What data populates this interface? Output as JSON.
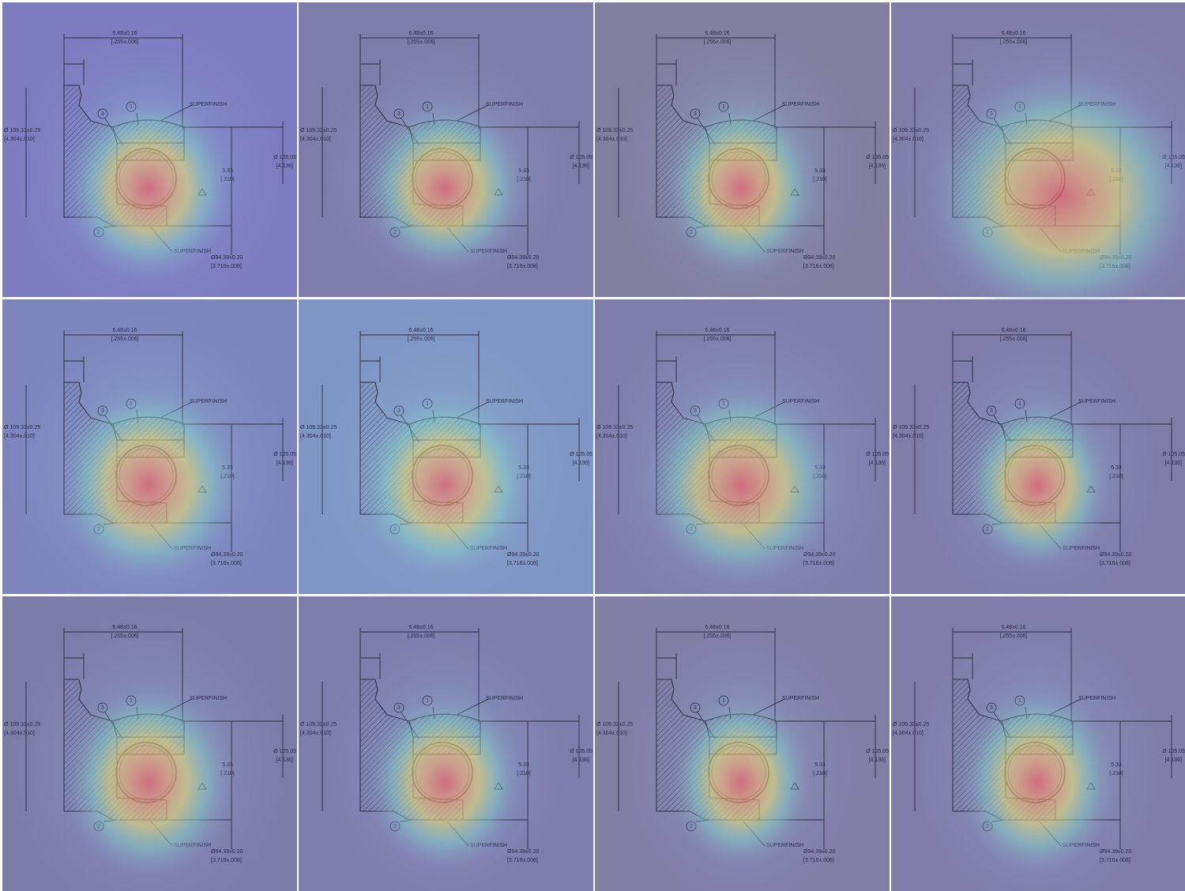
{
  "drawing": {
    "top_dimension": "6.48±0.16",
    "top_dimension_inch": "[.255±.006]",
    "callout": "SUPERFINISH",
    "outer_diameter": "Ø 109.33±0.25",
    "outer_diameter_inch": "[4.304±.010]",
    "mid_diameter": "Ø 105.05",
    "mid_diameter_inch": "[4.136]",
    "ball_size": "5.33",
    "ball_size_inch": "[.210]",
    "inner_diameter": "Ø94.39±0.20",
    "inner_diameter_inch": "[3.716±.008]",
    "balloons": [
      "1",
      "2",
      "3"
    ]
  }
}
